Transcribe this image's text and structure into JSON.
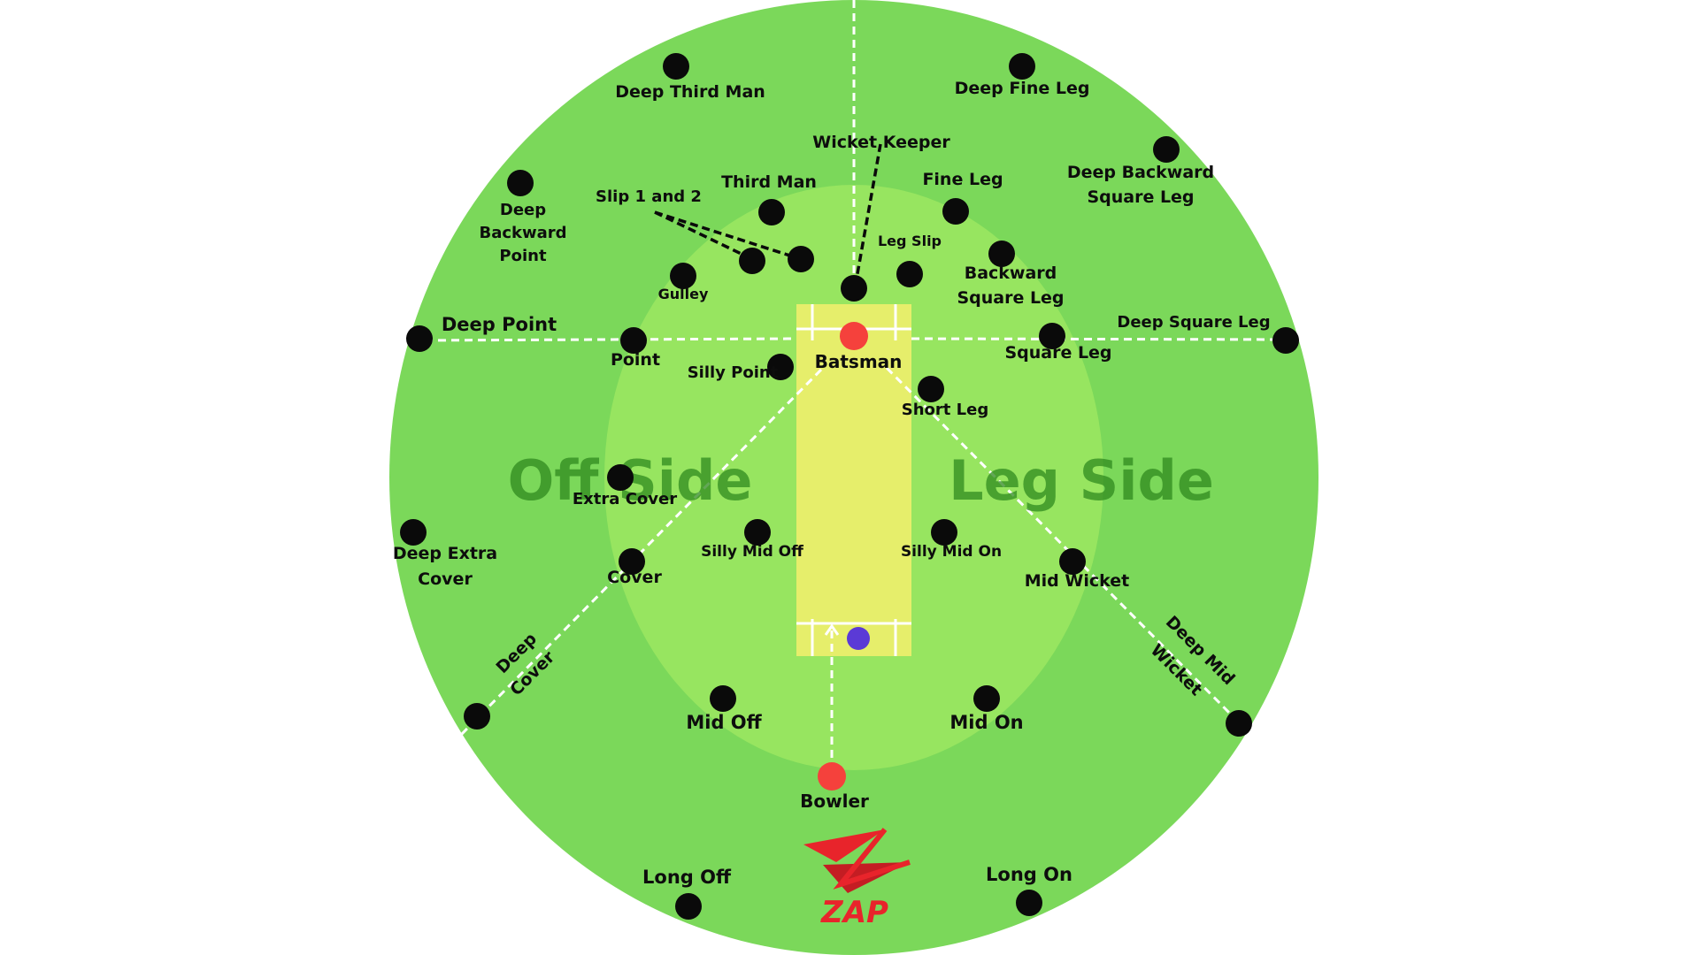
{
  "colors": {
    "outfield": "#7bd85a",
    "infield": "#97e560",
    "pitch": "#e6ee6b",
    "fielder": "#0a0a0a",
    "batsman": "#f5413c",
    "bowler": "#f5413c",
    "ball": "#5b3ad6",
    "logo": "#e8242b"
  },
  "sides": {
    "off": "Off Side",
    "leg": "Leg Side"
  },
  "players": {
    "batsman": "Batsman",
    "bowler": "Bowler"
  },
  "fielders": [
    {
      "id": "deep-third-man",
      "label": "Deep Third Man"
    },
    {
      "id": "deep-fine-leg",
      "label": "Deep Fine Leg"
    },
    {
      "id": "wicket-keeper",
      "label": "Wicket Keeper"
    },
    {
      "id": "deep-backward-square-leg",
      "label": "Deep Backward Square Leg"
    },
    {
      "id": "deep-backward-point",
      "label": "Deep Backward Point"
    },
    {
      "id": "third-man",
      "label": "Third Man"
    },
    {
      "id": "fine-leg",
      "label": "Fine Leg"
    },
    {
      "id": "slip-1-and-2",
      "label": "Slip 1 and 2"
    },
    {
      "id": "leg-slip",
      "label": "Leg Slip"
    },
    {
      "id": "backward-square-leg",
      "label": "Backward Square Leg"
    },
    {
      "id": "gulley",
      "label": "Gulley"
    },
    {
      "id": "deep-point",
      "label": "Deep Point"
    },
    {
      "id": "point",
      "label": "Point"
    },
    {
      "id": "deep-square-leg",
      "label": "Deep Square Leg"
    },
    {
      "id": "square-leg",
      "label": "Square Leg"
    },
    {
      "id": "silly-point",
      "label": "Silly Point"
    },
    {
      "id": "short-leg",
      "label": "Short Leg"
    },
    {
      "id": "extra-cover",
      "label": "Extra Cover"
    },
    {
      "id": "deep-extra-cover",
      "label": "Deep Extra Cover"
    },
    {
      "id": "cover",
      "label": "Cover"
    },
    {
      "id": "silly-mid-off",
      "label": "Silly Mid Off"
    },
    {
      "id": "silly-mid-on",
      "label": "Silly Mid On"
    },
    {
      "id": "mid-wicket",
      "label": "Mid Wicket"
    },
    {
      "id": "deep-cover",
      "label": "Deep Cover"
    },
    {
      "id": "deep-mid-wicket",
      "label": "Deep Mid Wicket"
    },
    {
      "id": "mid-off",
      "label": "Mid Off"
    },
    {
      "id": "mid-on",
      "label": "Mid On"
    },
    {
      "id": "long-off",
      "label": "Long Off"
    },
    {
      "id": "long-on",
      "label": "Long On"
    }
  ],
  "logo": {
    "text": "ZAP"
  }
}
